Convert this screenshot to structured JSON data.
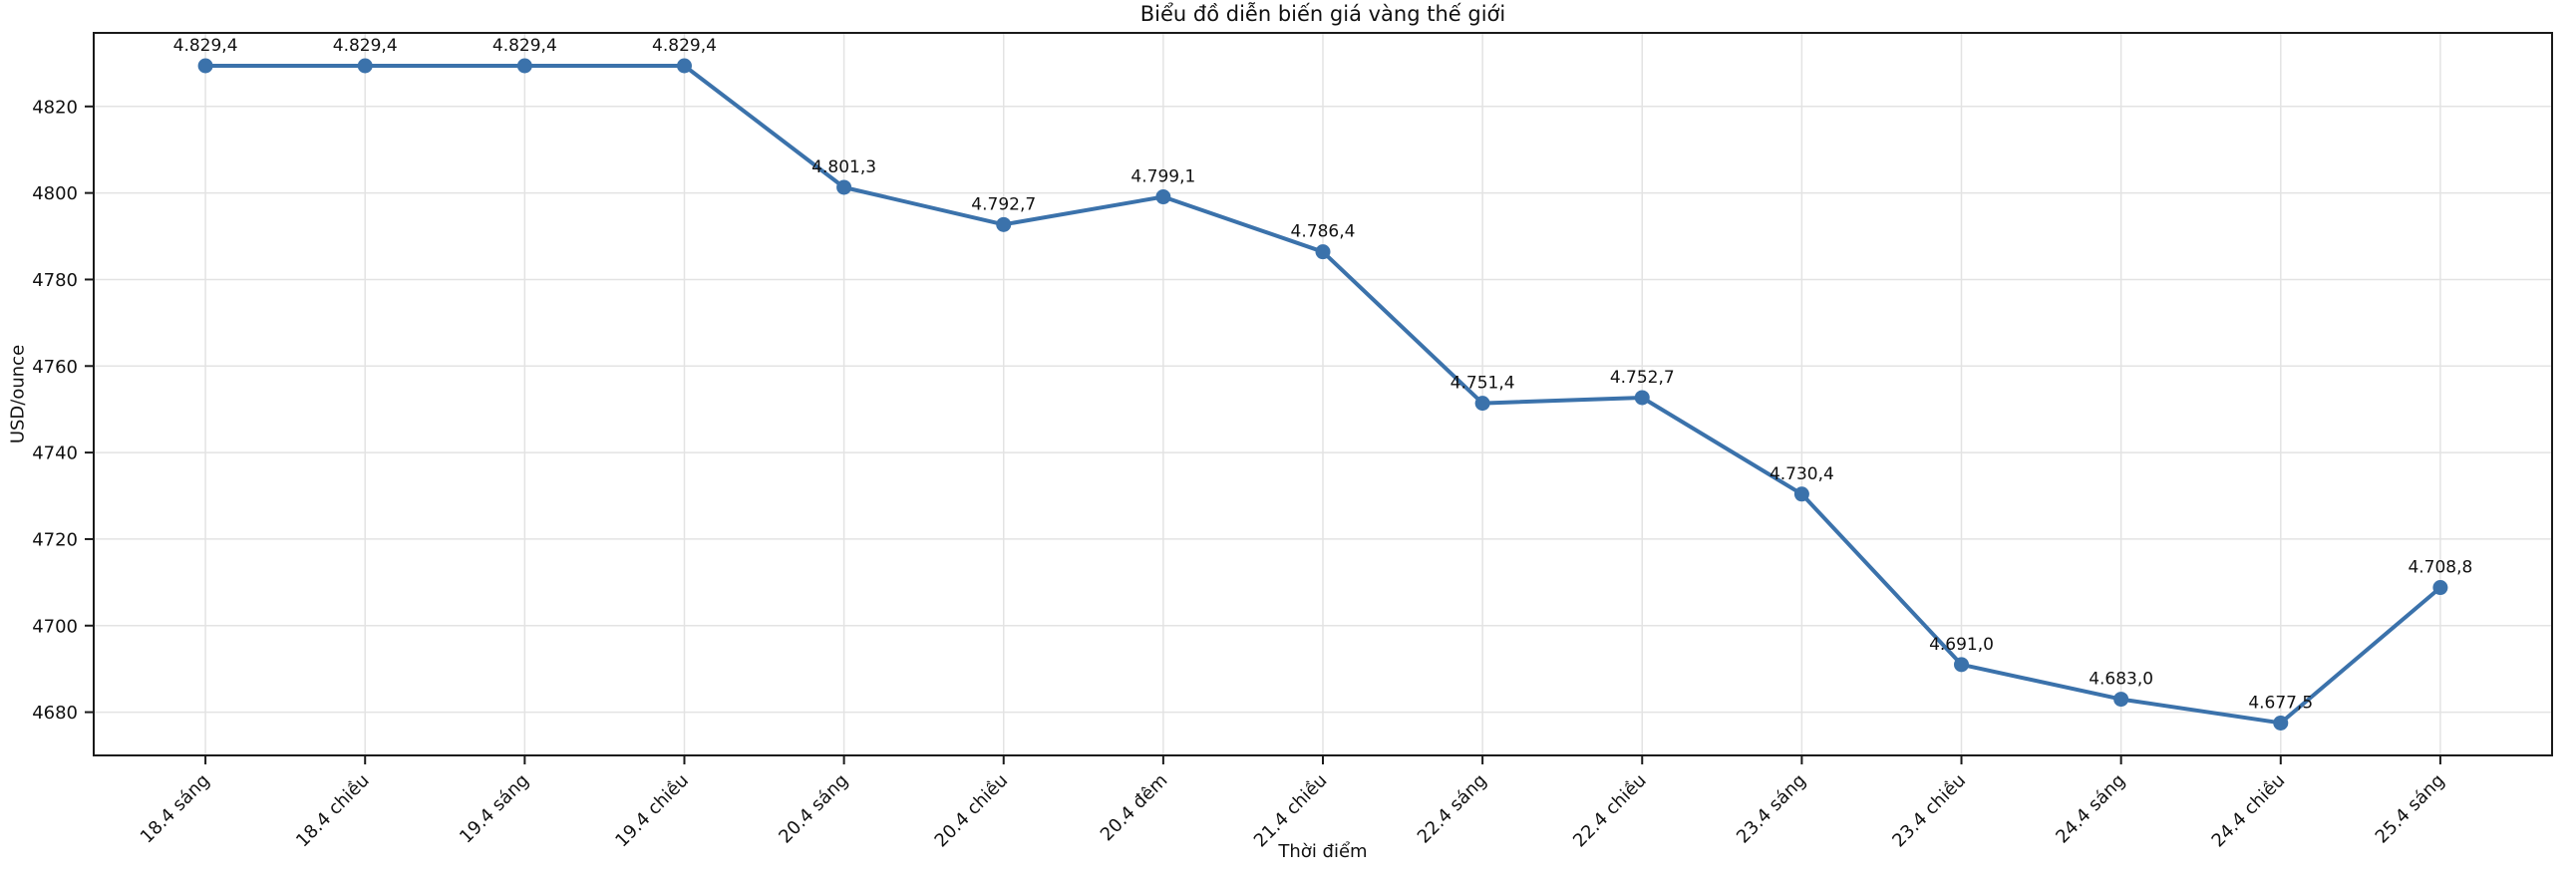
{
  "chart_data": {
    "type": "line",
    "title": "Biểu đồ diễn biến giá vàng thế giới",
    "xlabel": "Thời điểm",
    "ylabel": "USD/ounce",
    "categories": [
      "18.4 sáng",
      "18.4 chiều",
      "19.4 sáng",
      "19.4 chiều",
      "20.4 sáng",
      "20.4 chiều",
      "20.4 đêm",
      "21.4 chiều",
      "22.4 sáng",
      "22.4 chiều",
      "23.4 sáng",
      "23.4 chiều",
      "24.4 sáng",
      "24.4 chiều",
      "25.4 sáng"
    ],
    "values": [
      4829.4,
      4829.4,
      4829.4,
      4829.4,
      4801.3,
      4792.7,
      4799.1,
      4786.4,
      4751.4,
      4752.7,
      4730.4,
      4691.0,
      4683.0,
      4677.5,
      4708.8
    ],
    "point_labels": [
      "4.829,4",
      "4.829,4",
      "4.829,4",
      "4.829,4",
      "4.801,3",
      "4.792,7",
      "4.799,1",
      "4.786,4",
      "4.751,4",
      "4.752,7",
      "4.730,4",
      "4.691,0",
      "4.683,0",
      "4.677,5",
      "4.708,8"
    ],
    "yticks": [
      4680,
      4700,
      4720,
      4740,
      4760,
      4780,
      4800,
      4820
    ],
    "ylim": [
      4670,
      4837
    ],
    "x_margin_units": 0.7,
    "grid": true,
    "legend_position": "none",
    "line_color": "#3b72ab",
    "marker_color": "#3b72ab",
    "grid_color": "#e3e3e3",
    "spine_color": "#1a1a1a",
    "text_color": "#111111",
    "x_tick_rotation_deg": 45
  }
}
